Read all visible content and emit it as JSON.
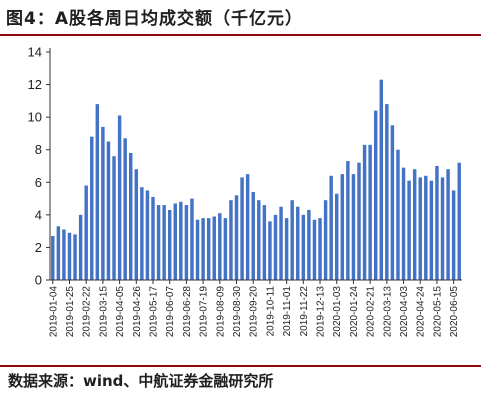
{
  "figure": {
    "title": "图4：A股各周日均成交额（千亿元）",
    "source": "数据来源：wind、中航证券金融研究所"
  },
  "colors": {
    "bar": "#4472C4",
    "rule": "#8f0a0a",
    "axis": "#333333"
  },
  "chart_data": {
    "type": "bar",
    "title": "",
    "xlabel": "",
    "ylabel": "",
    "ylim": [
      0,
      14
    ],
    "yticks": [
      0,
      2,
      4,
      6,
      8,
      10,
      12,
      14
    ],
    "grid": false,
    "legend": "none",
    "xtick_labels": [
      "2019-01-04",
      "2019-01-25",
      "2019-02-22",
      "2019-03-15",
      "2019-04-05",
      "2019-04-26",
      "2019-05-17",
      "2019-06-07",
      "2019-06-28",
      "2019-07-19",
      "2019-08-09",
      "2019-08-30",
      "2019-09-20",
      "2019-10-11",
      "2019-11-01",
      "2019-11-22",
      "2019-12-13",
      "2020-01-03",
      "2020-01-24",
      "2020-02-21",
      "2020-03-13",
      "2020-04-03",
      "2020-04-24",
      "2020-05-15",
      "2020-06-05"
    ],
    "xtick_every": 3,
    "values": [
      2.7,
      3.3,
      3.1,
      2.9,
      2.8,
      4.0,
      5.8,
      8.8,
      10.8,
      9.4,
      8.5,
      7.6,
      10.1,
      8.7,
      7.8,
      6.8,
      5.7,
      5.5,
      5.1,
      4.6,
      4.6,
      4.3,
      4.7,
      4.8,
      4.6,
      5.0,
      3.7,
      3.8,
      3.8,
      3.9,
      4.1,
      3.8,
      4.9,
      5.2,
      6.3,
      6.5,
      5.4,
      4.9,
      4.6,
      3.6,
      4.0,
      4.5,
      3.8,
      4.9,
      4.5,
      4.0,
      4.3,
      3.7,
      3.8,
      4.9,
      6.4,
      5.3,
      6.5,
      7.3,
      6.5,
      7.2,
      8.3,
      8.3,
      10.4,
      12.3,
      10.8,
      9.5,
      8.0,
      6.9,
      6.1,
      6.8,
      6.3,
      6.4,
      6.1,
      7.0,
      6.3,
      6.8,
      5.5,
      7.2
    ]
  }
}
